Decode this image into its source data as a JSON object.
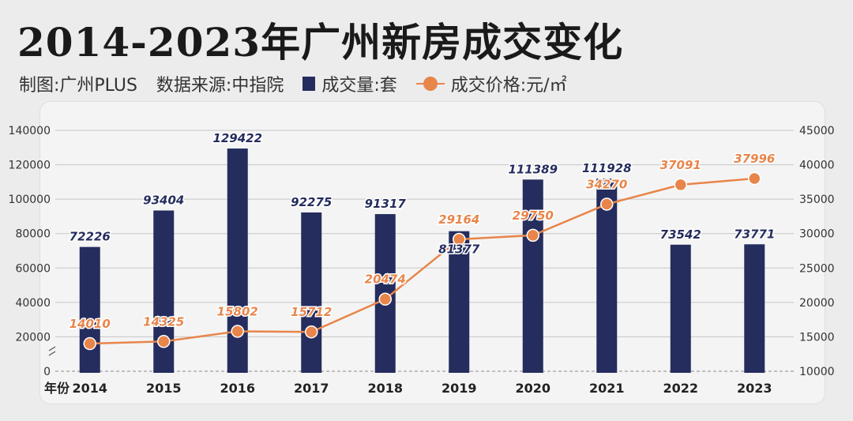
{
  "header": {
    "title": "2014-2023年广州新房成交变化",
    "credit": "制图:广州PLUS",
    "source": "数据来源:中指院",
    "legend_volume": "成交量:套",
    "legend_price": "成交价格:元/㎡"
  },
  "colors": {
    "bar": "#252d5e",
    "line": "#e8854a",
    "grid": "#c7c7c7"
  },
  "chart_data": {
    "type": "bar",
    "xlabel": "年份",
    "categories": [
      "2014",
      "2015",
      "2016",
      "2017",
      "2018",
      "2019",
      "2020",
      "2021",
      "2022",
      "2023"
    ],
    "series": [
      {
        "name": "成交量:套",
        "type": "bar",
        "axis": "left",
        "values": [
          72226,
          93404,
          129422,
          92275,
          91317,
          81377,
          111389,
          111928,
          73542,
          73771
        ]
      },
      {
        "name": "成交价格:元/㎡",
        "type": "line",
        "axis": "right",
        "values": [
          14010,
          14325,
          15802,
          15712,
          20474,
          29164,
          29750,
          34270,
          37091,
          37996
        ]
      }
    ],
    "left_axis": {
      "ticks": [
        "0",
        "20000",
        "40000",
        "60000",
        "80000",
        "100000",
        "120000",
        "140000"
      ],
      "tick_values": [
        0,
        20000,
        40000,
        60000,
        80000,
        100000,
        120000,
        140000
      ],
      "ylim": [
        0,
        140000
      ]
    },
    "right_axis": {
      "ticks": [
        "10000",
        "15000",
        "20000",
        "25000",
        "30000",
        "35000",
        "40000",
        "45000"
      ],
      "tick_values": [
        10000,
        15000,
        20000,
        25000,
        30000,
        35000,
        40000,
        45000
      ],
      "ylim": [
        10000,
        45000
      ]
    },
    "grid": true
  }
}
